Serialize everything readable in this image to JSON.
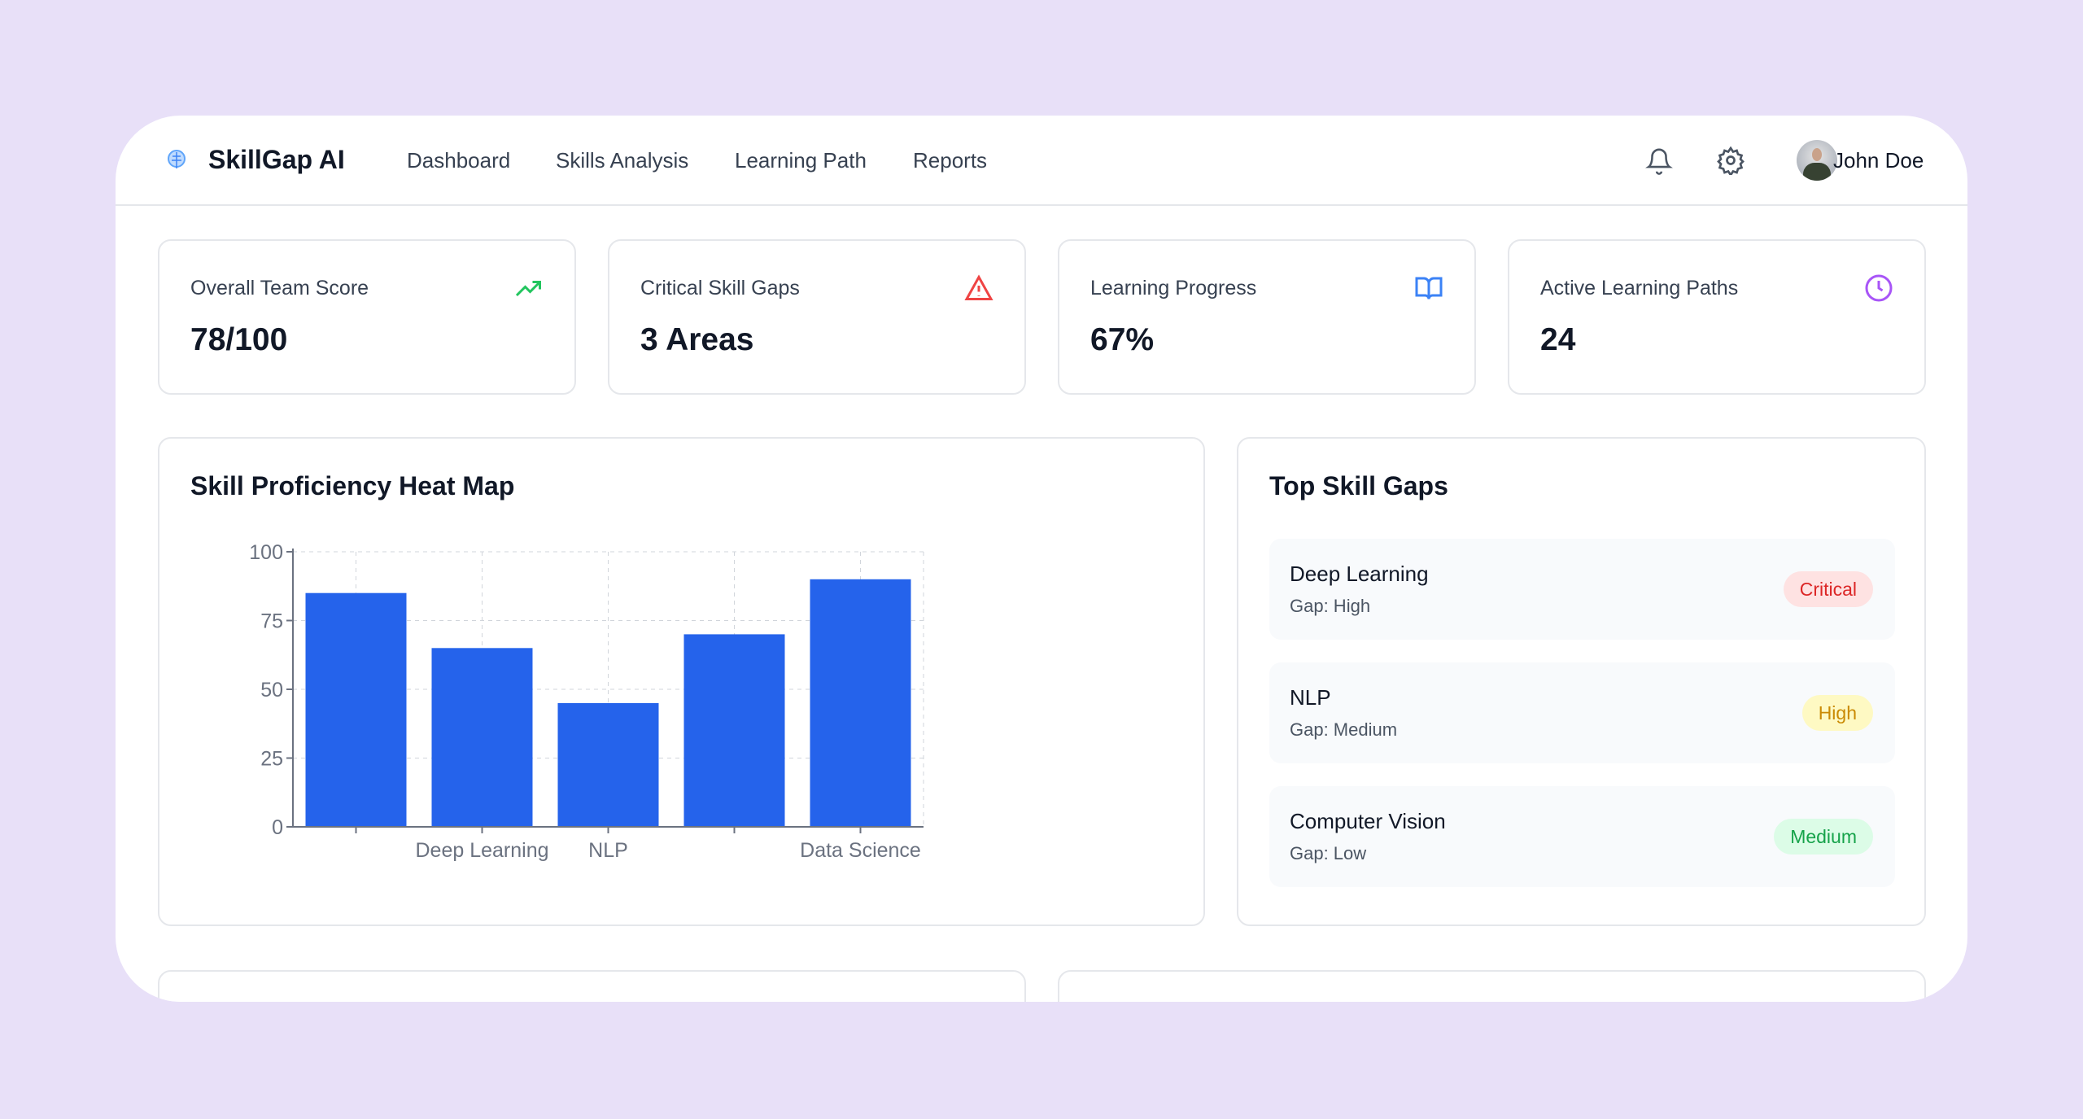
{
  "header": {
    "brand": "SkillGap AI",
    "nav": [
      "Dashboard",
      "Skills Analysis",
      "Learning Path",
      "Reports"
    ],
    "user_name": "John Doe"
  },
  "stats": [
    {
      "title": "Overall Team Score",
      "value": "78/100",
      "icon": "trending-up-icon",
      "color": "#22c55e"
    },
    {
      "title": "Critical Skill Gaps",
      "value": "3 Areas",
      "icon": "alert-triangle-icon",
      "color": "#ef4444"
    },
    {
      "title": "Learning Progress",
      "value": "67%",
      "icon": "book-open-icon",
      "color": "#3b82f6"
    },
    {
      "title": "Active Learning Paths",
      "value": "24",
      "icon": "clock-icon",
      "color": "#a855f7"
    }
  ],
  "heatmap": {
    "title": "Skill Proficiency Heat Map"
  },
  "chart_data": {
    "type": "bar",
    "categories": [
      "",
      "Deep Learning",
      "NLP",
      "",
      "Data Science"
    ],
    "series": [
      {
        "name": "score",
        "values": [
          85,
          65,
          45,
          70,
          90
        ],
        "color": "#2563eb"
      }
    ],
    "yticks": [
      0,
      25,
      50,
      75,
      100
    ],
    "ylim": [
      0,
      100
    ],
    "grid": true,
    "legend": "bottom"
  },
  "gaps": {
    "title": "Top Skill Gaps",
    "items": [
      {
        "name": "Deep Learning",
        "gap": "Gap: High",
        "badge": "Critical",
        "bg": "#fee2e2",
        "fg": "#dc2626"
      },
      {
        "name": "NLP",
        "gap": "Gap: Medium",
        "badge": "High",
        "bg": "#fef9c3",
        "fg": "#ca8a04"
      },
      {
        "name": "Computer Vision",
        "gap": "Gap: Low",
        "badge": "Medium",
        "bg": "#dcfce7",
        "fg": "#16a34a"
      }
    ]
  }
}
